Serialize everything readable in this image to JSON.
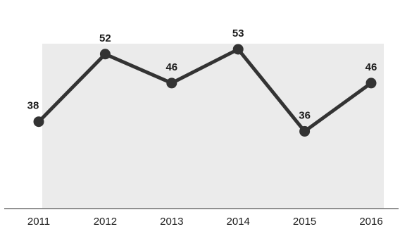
{
  "chart_data": {
    "type": "line",
    "title": "",
    "xlabel": "",
    "ylabel": "",
    "categories": [
      "2011",
      "2012",
      "2013",
      "2014",
      "2015",
      "2016"
    ],
    "series": [
      {
        "values": [
          38,
          52,
          46,
          53,
          36,
          46
        ]
      }
    ],
    "data_labels": [
      "38",
      "52",
      "46",
      "53",
      "36",
      "46"
    ],
    "ylim": [
      20,
      60
    ],
    "grid": true,
    "colors": {
      "line": "#333333",
      "marker": "#333333",
      "area": "#ebebeb",
      "grid": "#cfcfcf",
      "baseline": "#6e6e6e",
      "text": "#1a1a1a"
    }
  }
}
